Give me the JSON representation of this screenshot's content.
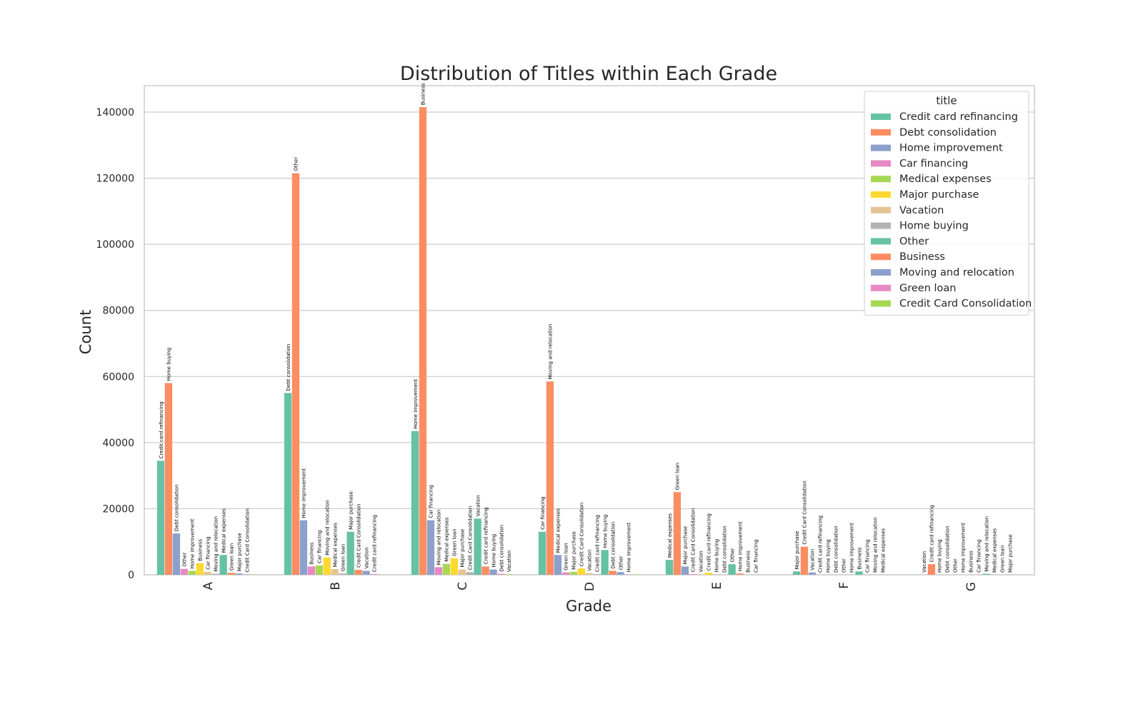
{
  "chart_data": {
    "type": "bar",
    "title": "Distribution of Titles within Each Grade",
    "xlabel": "Grade",
    "ylabel": "Count",
    "categories": [
      "A",
      "B",
      "C",
      "D",
      "E",
      "F",
      "G"
    ],
    "ylim": [
      0,
      148000
    ],
    "yticks": [
      0,
      20000,
      40000,
      60000,
      80000,
      100000,
      120000,
      140000
    ],
    "grid": true,
    "legend": {
      "title": "title",
      "placement": "top-right",
      "entries": [
        {
          "label": "Credit card refinancing",
          "color": "#66c2a5"
        },
        {
          "label": "Debt consolidation",
          "color": "#fc8d62"
        },
        {
          "label": "Home improvement",
          "color": "#8da0cb"
        },
        {
          "label": "Car financing",
          "color": "#e78ac3"
        },
        {
          "label": "Medical expenses",
          "color": "#a6d854"
        },
        {
          "label": "Major purchase",
          "color": "#ffd92f"
        },
        {
          "label": "Vacation",
          "color": "#e5c494"
        },
        {
          "label": "Home buying",
          "color": "#b3b3b3"
        },
        {
          "label": "Other",
          "color": "#66c2a5"
        },
        {
          "label": "Business",
          "color": "#fc8d62"
        },
        {
          "label": "Moving and relocation",
          "color": "#8da0cb"
        },
        {
          "label": "Green loan",
          "color": "#e78ac3"
        },
        {
          "label": "Credit Card Consolidation",
          "color": "#a6d854"
        }
      ]
    },
    "series": [
      {
        "name": "Credit card refinancing",
        "color": "#66c2a5",
        "values": [
          34500,
          55000,
          43500,
          13000,
          4500,
          1000,
          0
        ],
        "bar_labels": [
          "Credit card refinancing",
          "Debt consolidation",
          "Home improvement",
          "Car financing",
          "Medical expenses",
          "Major purchase",
          "Vacation"
        ]
      },
      {
        "name": "Debt consolidation",
        "color": "#fc8d62",
        "values": [
          58000,
          121500,
          141500,
          58500,
          25000,
          8500,
          3200
        ],
        "bar_labels": [
          "Home buying",
          "Other",
          "Business",
          "Moving and relocation",
          "Green loan",
          "Credit Card Consolidation",
          "Credit card refinancing"
        ]
      },
      {
        "name": "Home improvement",
        "color": "#8da0cb",
        "values": [
          12500,
          16500,
          16500,
          6000,
          2500,
          700,
          0
        ],
        "bar_labels": [
          "Debt consolidation",
          "Home improvement",
          "Car financing",
          "Medical expenses",
          "Major purchase",
          "Vacation",
          "Home buying"
        ]
      },
      {
        "name": "Car financing",
        "color": "#e78ac3",
        "values": [
          1800,
          2500,
          2300,
          700,
          200,
          0,
          0
        ],
        "bar_labels": [
          "Other",
          "Business",
          "Moving and relocation",
          "Green loan",
          "Credit Card Consolidation",
          "Credit card refinancing",
          "Debt consolidation"
        ]
      },
      {
        "name": "Medical expenses",
        "color": "#a6d854",
        "values": [
          1200,
          2800,
          3300,
          900,
          100,
          0,
          0
        ],
        "bar_labels": [
          "Home improvement",
          "Car financing",
          "Medical expenses",
          "Major purchase",
          "Vacation",
          "Home buying",
          "Other"
        ]
      },
      {
        "name": "Major purchase",
        "color": "#ffd92f",
        "values": [
          3500,
          5200,
          5000,
          1900,
          600,
          0,
          0
        ],
        "bar_labels": [
          "Business",
          "Moving and relocation",
          "Green loan",
          "Credit Card Consolidation",
          "Credit card refinancing",
          "Debt consolidation",
          "Home improvement"
        ]
      },
      {
        "name": "Vacation",
        "color": "#e5c494",
        "values": [
          900,
          1700,
          1600,
          500,
          100,
          0,
          0
        ],
        "bar_labels": [
          "Car financing",
          "Medical expenses",
          "Major purchase",
          "Vacation",
          "Home buying",
          "Other",
          "Business"
        ]
      },
      {
        "name": "Home buying",
        "color": "#b3b3b3",
        "values": [
          300,
          400,
          800,
          200,
          0,
          0,
          0
        ],
        "bar_labels": [
          "Moving and relocation",
          "Green loan",
          "Credit Card Consolidation",
          "Credit card refinancing",
          "Debt consolidation",
          "Home improvement",
          "Car financing"
        ]
      },
      {
        "name": "Other",
        "color": "#66c2a5",
        "values": [
          6000,
          13000,
          17000,
          7500,
          3200,
          1000,
          300
        ],
        "bar_labels": [
          "Medical expenses",
          "Major purchase",
          "Vacation",
          "Home buying",
          "Other",
          "Business",
          "Moving and relocation"
        ]
      },
      {
        "name": "Business",
        "color": "#fc8d62",
        "values": [
          600,
          1500,
          2500,
          1200,
          400,
          0,
          0
        ],
        "bar_labels": [
          "Green loan",
          "Credit Card Consolidation",
          "Credit card refinancing",
          "Debt consolidation",
          "Home improvement",
          "Car financing",
          "Medical expenses"
        ]
      },
      {
        "name": "Moving and relocation",
        "color": "#8da0cb",
        "values": [
          400,
          1200,
          1600,
          800,
          0,
          0,
          0
        ],
        "bar_labels": [
          "Major purchase",
          "Vacation",
          "Home buying",
          "Other",
          "Business",
          "Moving and relocation",
          "Green loan"
        ]
      },
      {
        "name": "Green loan",
        "color": "#e78ac3",
        "values": [
          100,
          200,
          300,
          100,
          0,
          0,
          0
        ],
        "bar_labels": [
          "Credit Card Consolidation",
          "Credit card refinancing",
          "Debt consolidation",
          "Home improvement",
          "Car financing",
          "Medical expenses",
          "Major purchase"
        ]
      },
      {
        "name": "Credit Card Consolidation",
        "color": "#a6d854",
        "values": [
          100,
          100,
          200,
          100,
          0,
          0,
          0
        ],
        "bar_labels": [
          "",
          "",
          "Vacation",
          "",
          "",
          "",
          ""
        ]
      }
    ]
  }
}
